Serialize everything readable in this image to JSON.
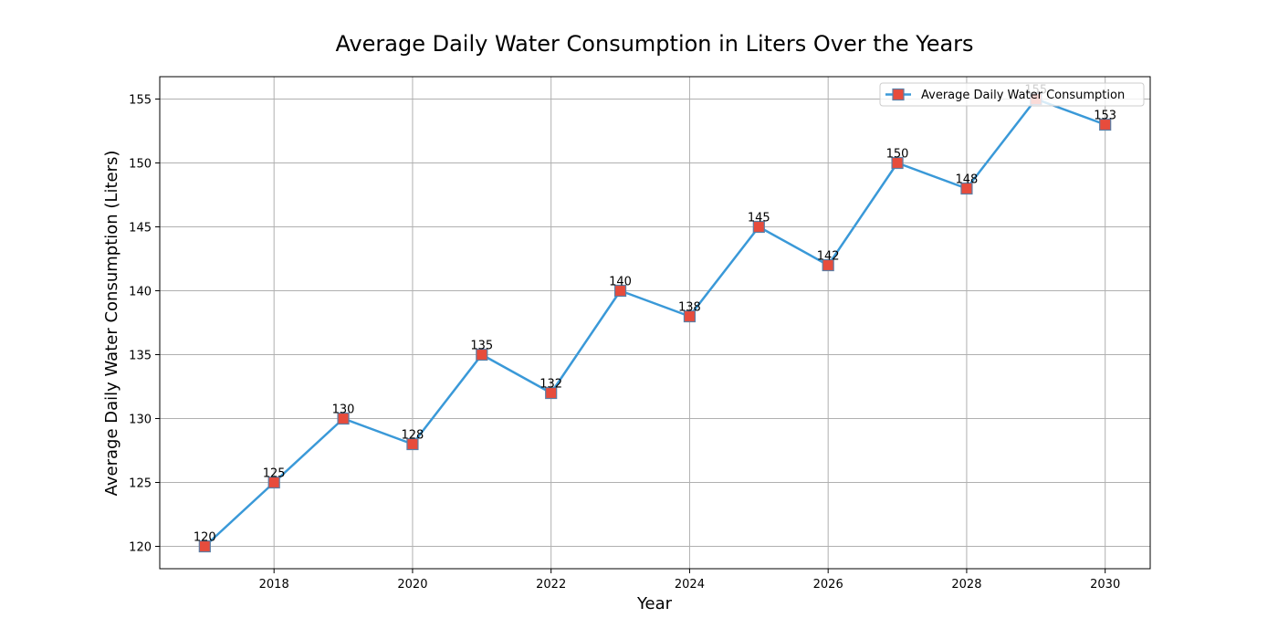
{
  "chart_data": {
    "type": "line",
    "title": "Average Daily Water Consumption in Liters Over the Years",
    "xlabel": "Year",
    "ylabel": "Average Daily Water Consumption (Liters)",
    "x": [
      2017,
      2018,
      2019,
      2020,
      2021,
      2022,
      2023,
      2024,
      2025,
      2026,
      2027,
      2028,
      2029,
      2030
    ],
    "series": [
      {
        "name": "Average Daily Water Consumption",
        "values": [
          120,
          125,
          130,
          128,
          135,
          132,
          140,
          138,
          145,
          142,
          150,
          148,
          155,
          153
        ]
      }
    ],
    "xlim": [
      2016.35,
      2030.65
    ],
    "ylim": [
      118.25,
      156.75
    ],
    "xticks": [
      2018,
      2020,
      2022,
      2024,
      2026,
      2028,
      2030
    ],
    "yticks": [
      120,
      125,
      130,
      135,
      140,
      145,
      150,
      155
    ],
    "grid": true,
    "legend_position": "top-right",
    "line_color": "#3a99d8",
    "marker_color": "#e74c3c",
    "marker_edge_color": "#5b7fa6",
    "marker": "square",
    "data_labels": true
  }
}
